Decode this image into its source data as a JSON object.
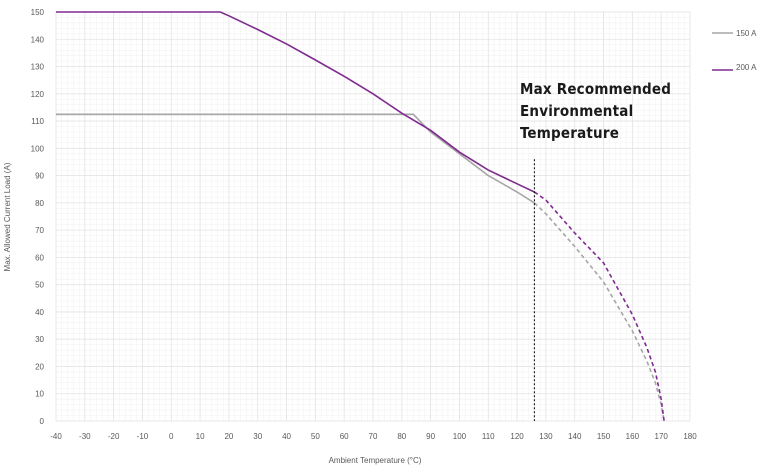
{
  "chart_data": {
    "type": "line",
    "title": "",
    "xlabel": "Ambient Temperature (°C)",
    "ylabel": "Max. Allowed Current Load (A)",
    "xlim": [
      -40,
      180
    ],
    "ylim": [
      0,
      150
    ],
    "xticks": [
      -40,
      -30,
      -20,
      -10,
      0,
      10,
      20,
      30,
      40,
      50,
      60,
      70,
      80,
      90,
      100,
      110,
      120,
      130,
      140,
      150,
      160,
      170,
      180
    ],
    "yticks": [
      0,
      10,
      20,
      30,
      40,
      50,
      60,
      70,
      80,
      90,
      100,
      110,
      120,
      130,
      140,
      150
    ],
    "grid": true,
    "legend_position": "top-right",
    "colors": {
      "series_150": "#a6a6a6",
      "series_200": "#7f2a8f",
      "grid": "#e3e3e3",
      "marker_line": "#000000"
    },
    "series": [
      {
        "name": "150 A",
        "solid": [
          [
            -40,
            112.5
          ],
          [
            84,
            112.5
          ],
          [
            90,
            106
          ],
          [
            100,
            98
          ],
          [
            110,
            90
          ],
          [
            120,
            84
          ],
          [
            126,
            80
          ]
        ],
        "dashed": [
          [
            126,
            80
          ],
          [
            130,
            76
          ],
          [
            140,
            64
          ],
          [
            150,
            51
          ],
          [
            160,
            33
          ],
          [
            165,
            22
          ],
          [
            168,
            14
          ],
          [
            170,
            6
          ],
          [
            171,
            0
          ]
        ]
      },
      {
        "name": "200 A",
        "solid": [
          [
            -40,
            150
          ],
          [
            17,
            150
          ],
          [
            20,
            148.6
          ],
          [
            30,
            143.6
          ],
          [
            40,
            138.3
          ],
          [
            50,
            132.4
          ],
          [
            60,
            126.4
          ],
          [
            70,
            120
          ],
          [
            80,
            112.9
          ],
          [
            90,
            106.6
          ],
          [
            100,
            98.6
          ],
          [
            110,
            92
          ],
          [
            120,
            87
          ],
          [
            126,
            84
          ]
        ],
        "dashed": [
          [
            126,
            84
          ],
          [
            130,
            81
          ],
          [
            140,
            69
          ],
          [
            150,
            58
          ],
          [
            160,
            39
          ],
          [
            165,
            27
          ],
          [
            168,
            18
          ],
          [
            170,
            8
          ],
          [
            171,
            0
          ]
        ]
      }
    ],
    "annotation": {
      "lines": [
        "Max Recommended",
        "Environmental",
        "Temperature"
      ],
      "marker_x": 126,
      "marker_y_top": 96,
      "marker_y_bottom": 0
    }
  }
}
